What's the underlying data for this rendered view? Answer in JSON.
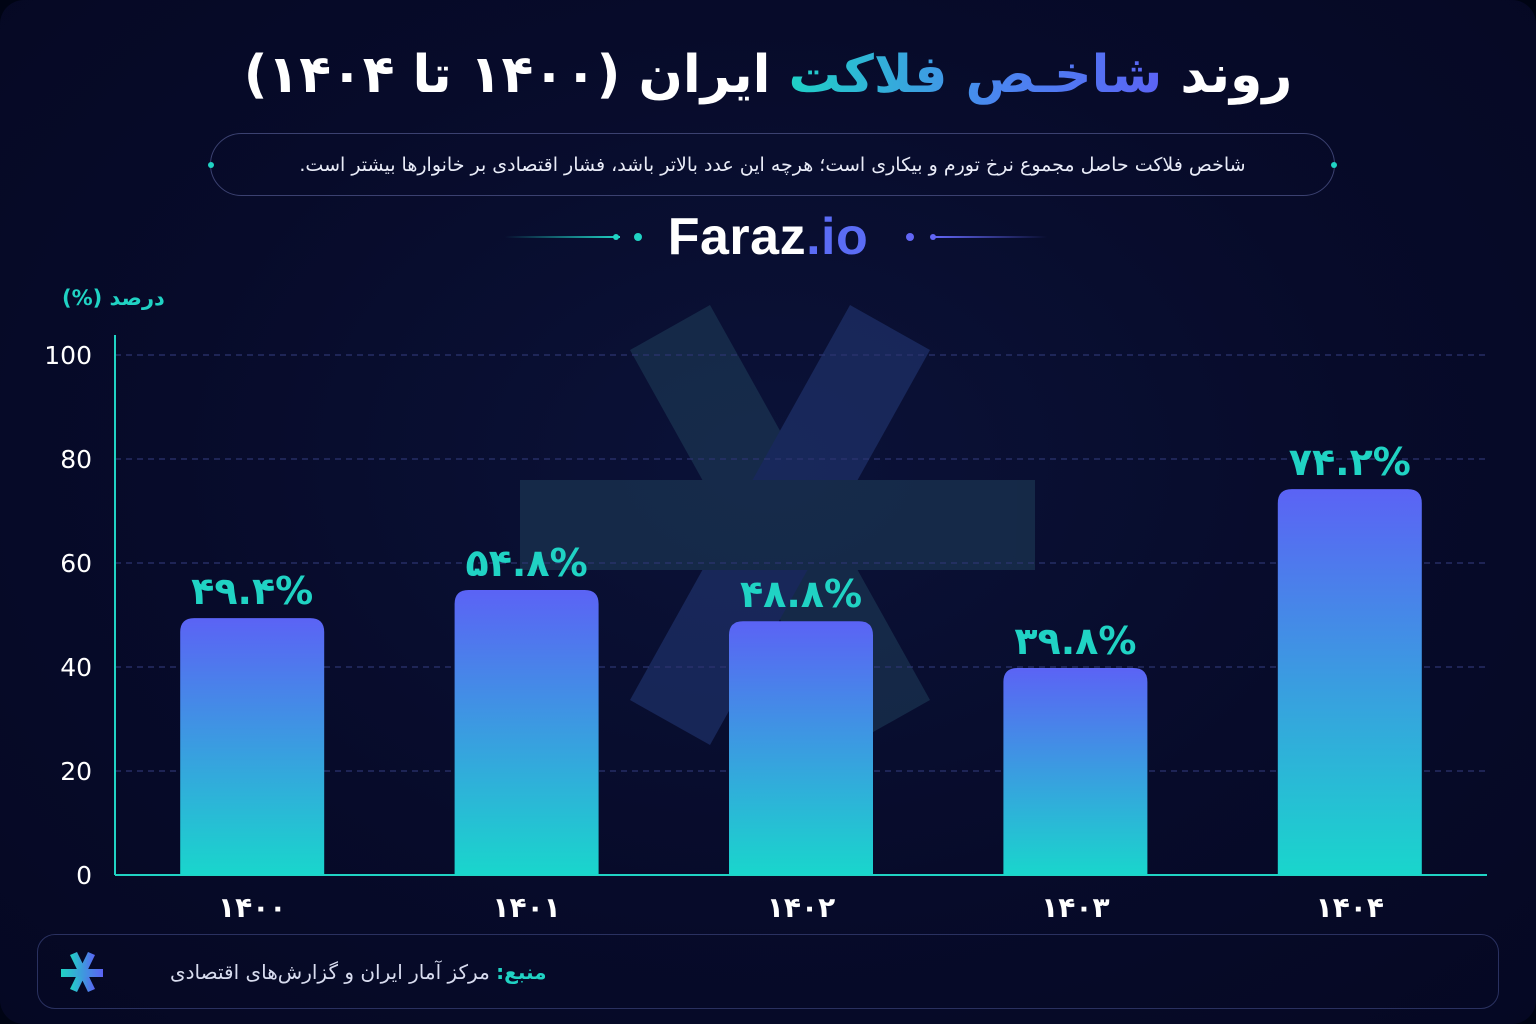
{
  "title": {
    "before": "روند ",
    "accent": "شاخـص فلاکت",
    "after": " ایران (۱۴۰۰ تا ۱۴۰۴)"
  },
  "subtitle": "شاخص فلاکت حاصل مجموع نرخ تورم و بیکاری است؛ هرچه این عدد بالاتر باشد، فشار اقتصادی بر خانوارها بیشتر است.",
  "brand": {
    "name": "Faraz",
    "suffix": ".io"
  },
  "source": {
    "label": "منبع:",
    "text": " مرکز آمار ایران و گزارش‌های اقتصادی"
  },
  "colors": {
    "teal": "#20d3c4",
    "indigo": "#5b63f5",
    "background": "#070b2a",
    "grid": "#2c3470",
    "watermark": "#1f3f5a"
  },
  "icons": {
    "watermark": "asterisk-logo",
    "source": "asterisk-icon"
  },
  "chart_data": {
    "type": "bar",
    "categories": [
      "۱۴۰۰",
      "۱۴۰۱",
      "۱۴۰۲",
      "۱۴۰۳",
      "۱۴۰۴"
    ],
    "values": [
      49.4,
      54.8,
      48.8,
      39.8,
      74.2
    ],
    "data_labels": [
      "۴۹.۴%",
      "۵۴.۸%",
      "۴۸.۸%",
      "۳۹.۸%",
      "۷۴.۲%"
    ],
    "ylabel": "درصد (%)",
    "xlabel": "",
    "ylim": [
      0,
      100
    ],
    "yticks": [
      "0",
      "20",
      "40",
      "60",
      "80",
      "100"
    ],
    "grid": true,
    "bar_gradient": [
      "#5b63f5",
      "#19d6cc"
    ]
  }
}
